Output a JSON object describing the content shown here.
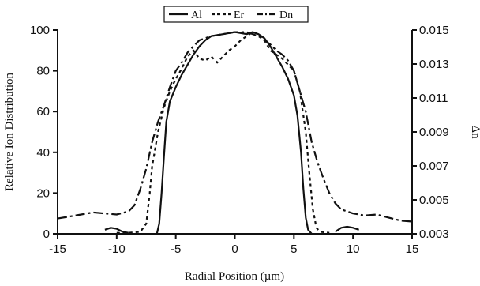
{
  "chart_data": {
    "type": "line",
    "title": "",
    "xlabel": "Radial Position (µm)",
    "ylabel": "Relative Ion Distribution",
    "y2label": "Δn",
    "xlim": [
      -15,
      15
    ],
    "ylim": [
      0,
      100
    ],
    "y2lim": [
      0.003,
      0.015
    ],
    "x_ticks": [
      "-15",
      "-10",
      "-5",
      "0",
      "5",
      "10",
      "15"
    ],
    "y_ticks": [
      "0",
      "20",
      "40",
      "60",
      "80",
      "100"
    ],
    "y2_ticks": [
      "0.003",
      "0.005",
      "0.007",
      "0.009",
      "0.011",
      "0.013",
      "0.015"
    ],
    "legend_position": "top-center",
    "grid": false,
    "series": [
      {
        "name": "Al",
        "style": "solid",
        "segments": [
          [
            [
              -11.0,
              2.0
            ],
            [
              -10.5,
              3.0
            ],
            [
              -10.0,
              2.5
            ],
            [
              -9.5,
              1.0
            ],
            [
              -9.0,
              0.5
            ]
          ],
          [
            [
              -6.6,
              0
            ],
            [
              -6.4,
              5
            ],
            [
              -6.2,
              20
            ],
            [
              -6.0,
              38
            ],
            [
              -5.8,
              55
            ],
            [
              -5.5,
              65
            ],
            [
              -5.0,
              72
            ],
            [
              -4.5,
              78
            ],
            [
              -4.0,
              83
            ],
            [
              -3.5,
              88
            ],
            [
              -3.0,
              92
            ],
            [
              -2.5,
              95
            ],
            [
              -2.0,
              97
            ],
            [
              -1.0,
              98
            ],
            [
              0.0,
              99
            ],
            [
              1.0,
              98
            ],
            [
              1.5,
              99
            ],
            [
              2.0,
              98
            ],
            [
              2.5,
              96
            ],
            [
              3.0,
              92
            ],
            [
              3.5,
              87
            ],
            [
              4.0,
              82
            ],
            [
              4.5,
              76
            ],
            [
              5.0,
              68
            ],
            [
              5.3,
              58
            ],
            [
              5.6,
              40
            ],
            [
              5.8,
              22
            ],
            [
              6.0,
              8
            ],
            [
              6.2,
              2
            ],
            [
              6.5,
              0
            ]
          ],
          [
            [
              8.5,
              1.0
            ],
            [
              9.0,
              3.0
            ],
            [
              9.5,
              3.5
            ],
            [
              10.0,
              3.0
            ],
            [
              10.5,
              2.0
            ]
          ]
        ]
      },
      {
        "name": "Er",
        "style": "dashed",
        "segments": [
          [
            [
              -10.0,
              0.5
            ],
            [
              -9.0,
              0.5
            ],
            [
              -8.0,
              1
            ],
            [
              -7.5,
              5
            ],
            [
              -7.2,
              20
            ],
            [
              -7.0,
              33
            ],
            [
              -6.5,
              50
            ],
            [
              -6.0,
              62
            ],
            [
              -5.5,
              70
            ],
            [
              -5.0,
              76
            ],
            [
              -4.5,
              81
            ],
            [
              -4.0,
              87
            ],
            [
              -3.5,
              90
            ],
            [
              -3.0,
              86
            ],
            [
              -2.5,
              85
            ],
            [
              -2.0,
              87
            ],
            [
              -1.5,
              84
            ],
            [
              -1.0,
              87
            ],
            [
              -0.5,
              90
            ],
            [
              0.0,
              92
            ],
            [
              0.5,
              95
            ],
            [
              1.0,
              97
            ],
            [
              1.5,
              99
            ],
            [
              2.0,
              98
            ],
            [
              2.5,
              95
            ],
            [
              3.0,
              90
            ],
            [
              3.5,
              88
            ],
            [
              4.0,
              86
            ],
            [
              4.5,
              83
            ],
            [
              5.0,
              80
            ],
            [
              5.5,
              70
            ],
            [
              6.0,
              50
            ],
            [
              6.3,
              30
            ],
            [
              6.6,
              12
            ],
            [
              6.9,
              3
            ],
            [
              7.2,
              1
            ],
            [
              8.0,
              0.5
            ]
          ]
        ]
      },
      {
        "name": "Dn",
        "style": "dash-dot",
        "segments": [
          [
            [
              -15.0,
              7.5
            ],
            [
              -14.0,
              8.5
            ],
            [
              -13.0,
              9.5
            ],
            [
              -12.0,
              10.5
            ],
            [
              -11.0,
              10
            ],
            [
              -10.0,
              9.5
            ],
            [
              -9.0,
              11
            ],
            [
              -8.5,
              14
            ],
            [
              -8.0,
              22
            ],
            [
              -7.5,
              32
            ],
            [
              -7.0,
              45
            ],
            [
              -6.5,
              55
            ],
            [
              -6.0,
              63
            ],
            [
              -5.5,
              72
            ],
            [
              -5.0,
              80
            ],
            [
              -4.5,
              84
            ],
            [
              -4.0,
              89
            ],
            [
              -3.5,
              92
            ],
            [
              -3.0,
              95
            ],
            [
              -2.0,
              97
            ],
            [
              -1.0,
              98
            ],
            [
              0.0,
              99
            ],
            [
              1.0,
              99
            ],
            [
              2.0,
              97
            ],
            [
              3.0,
              93
            ],
            [
              3.5,
              90
            ],
            [
              4.0,
              88
            ],
            [
              4.5,
              85
            ],
            [
              5.0,
              80
            ],
            [
              5.5,
              70
            ],
            [
              6.0,
              60
            ],
            [
              6.5,
              45
            ],
            [
              7.0,
              35
            ],
            [
              7.5,
              27
            ],
            [
              8.0,
              20
            ],
            [
              8.5,
              15
            ],
            [
              9.0,
              12
            ],
            [
              10.0,
              10
            ],
            [
              11.0,
              9
            ],
            [
              12.0,
              9.5
            ],
            [
              13.0,
              8
            ],
            [
              14.0,
              6.5
            ],
            [
              15.0,
              6
            ]
          ]
        ]
      }
    ]
  }
}
